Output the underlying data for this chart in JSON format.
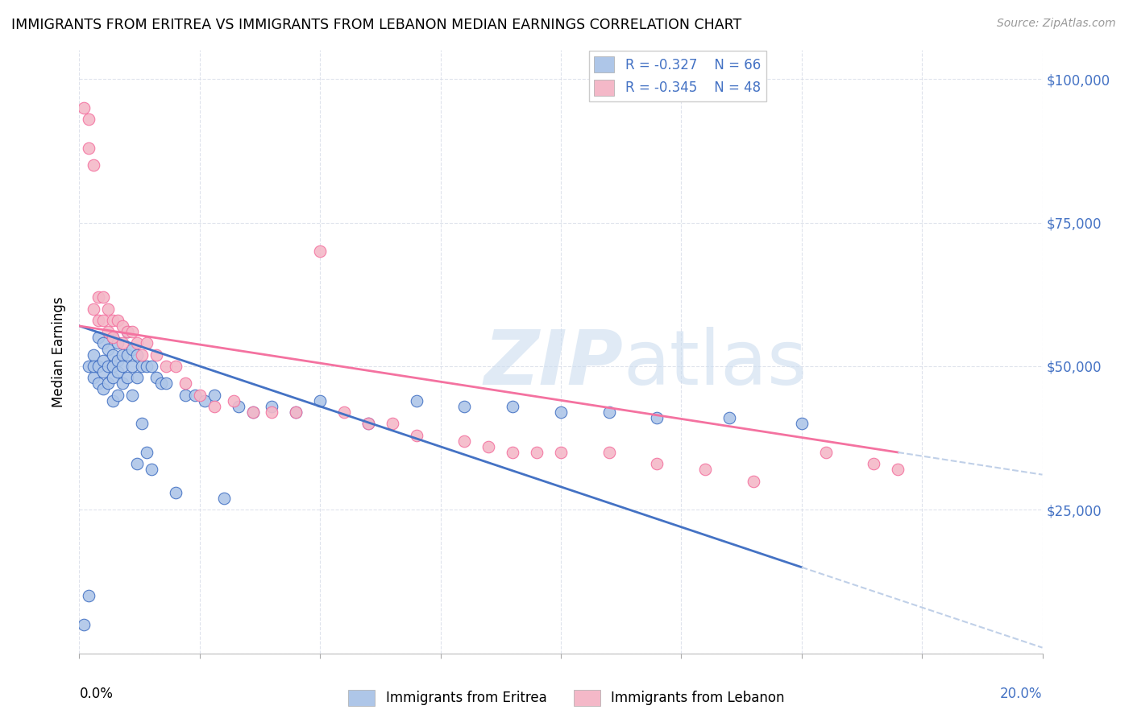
{
  "title": "IMMIGRANTS FROM ERITREA VS IMMIGRANTS FROM LEBANON MEDIAN EARNINGS CORRELATION CHART",
  "source": "Source: ZipAtlas.com",
  "ylabel": "Median Earnings",
  "yticks": [
    0,
    25000,
    50000,
    75000,
    100000
  ],
  "ytick_labels": [
    "",
    "$25,000",
    "$50,000",
    "$75,000",
    "$100,000"
  ],
  "xlim": [
    0.0,
    0.2
  ],
  "ylim": [
    0,
    105000
  ],
  "eritrea_R": -0.327,
  "eritrea_N": 66,
  "lebanon_R": -0.345,
  "lebanon_N": 48,
  "eritrea_color": "#aec6e8",
  "lebanon_color": "#f4b8c8",
  "eritrea_line_color": "#4472c4",
  "lebanon_line_color": "#f472a0",
  "dash_color": "#c0d0e8",
  "blue_text_color": "#4472c4",
  "eritrea_x": [
    0.001,
    0.002,
    0.002,
    0.003,
    0.003,
    0.003,
    0.004,
    0.004,
    0.004,
    0.005,
    0.005,
    0.005,
    0.005,
    0.006,
    0.006,
    0.006,
    0.007,
    0.007,
    0.007,
    0.007,
    0.007,
    0.008,
    0.008,
    0.008,
    0.008,
    0.009,
    0.009,
    0.009,
    0.01,
    0.01,
    0.01,
    0.011,
    0.011,
    0.011,
    0.012,
    0.012,
    0.012,
    0.013,
    0.013,
    0.014,
    0.014,
    0.015,
    0.015,
    0.016,
    0.017,
    0.018,
    0.02,
    0.022,
    0.024,
    0.026,
    0.028,
    0.03,
    0.033,
    0.036,
    0.04,
    0.045,
    0.05,
    0.06,
    0.07,
    0.08,
    0.09,
    0.1,
    0.11,
    0.12,
    0.135,
    0.15
  ],
  "eritrea_y": [
    5000,
    10000,
    50000,
    52000,
    48000,
    50000,
    55000,
    50000,
    47000,
    54000,
    51000,
    49000,
    46000,
    53000,
    50000,
    47000,
    55000,
    52000,
    50000,
    48000,
    44000,
    54000,
    51000,
    49000,
    45000,
    52000,
    50000,
    47000,
    56000,
    52000,
    48000,
    53000,
    50000,
    45000,
    52000,
    48000,
    33000,
    50000,
    40000,
    50000,
    35000,
    50000,
    32000,
    48000,
    47000,
    47000,
    28000,
    45000,
    45000,
    44000,
    45000,
    27000,
    43000,
    42000,
    43000,
    42000,
    44000,
    40000,
    44000,
    43000,
    43000,
    42000,
    42000,
    41000,
    41000,
    40000
  ],
  "lebanon_x": [
    0.001,
    0.002,
    0.002,
    0.003,
    0.003,
    0.004,
    0.004,
    0.005,
    0.005,
    0.006,
    0.006,
    0.007,
    0.007,
    0.008,
    0.009,
    0.009,
    0.01,
    0.011,
    0.012,
    0.013,
    0.014,
    0.016,
    0.018,
    0.02,
    0.022,
    0.025,
    0.028,
    0.032,
    0.036,
    0.04,
    0.045,
    0.05,
    0.055,
    0.06,
    0.065,
    0.07,
    0.08,
    0.085,
    0.09,
    0.095,
    0.1,
    0.11,
    0.12,
    0.13,
    0.14,
    0.155,
    0.165,
    0.17
  ],
  "lebanon_y": [
    95000,
    93000,
    88000,
    85000,
    60000,
    62000,
    58000,
    62000,
    58000,
    60000,
    56000,
    58000,
    55000,
    58000,
    57000,
    54000,
    56000,
    56000,
    54000,
    52000,
    54000,
    52000,
    50000,
    50000,
    47000,
    45000,
    43000,
    44000,
    42000,
    42000,
    42000,
    70000,
    42000,
    40000,
    40000,
    38000,
    37000,
    36000,
    35000,
    35000,
    35000,
    35000,
    33000,
    32000,
    30000,
    35000,
    33000,
    32000
  ]
}
